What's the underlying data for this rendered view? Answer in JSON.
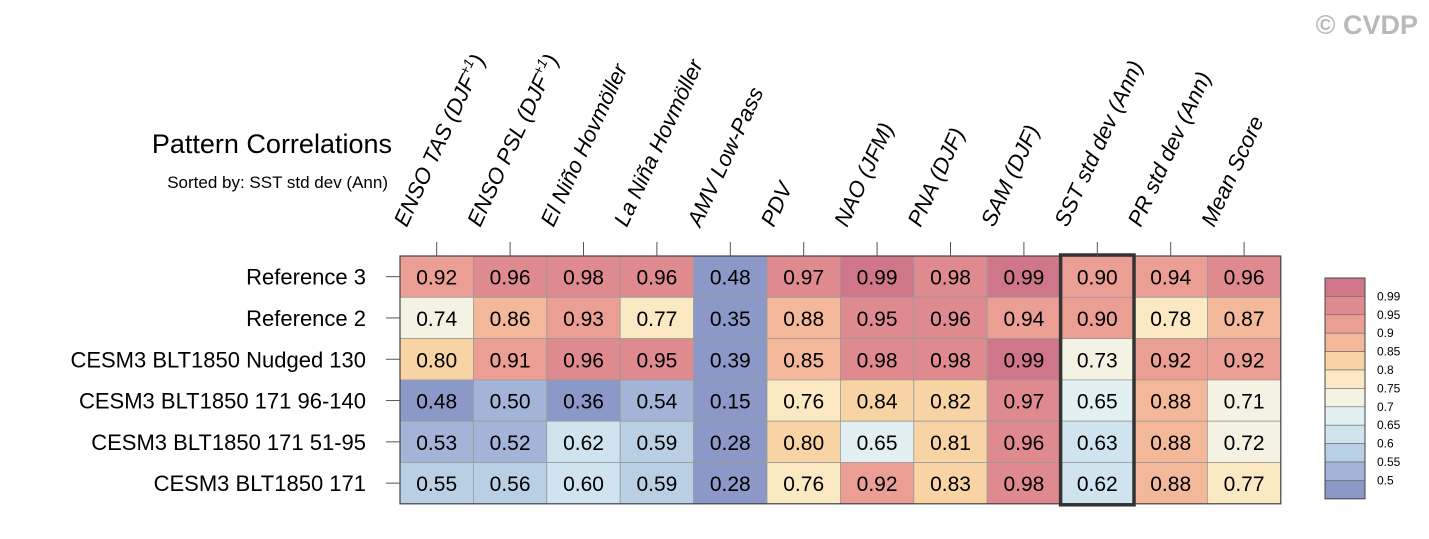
{
  "watermark": "© CVDP",
  "chart_data": {
    "type": "heatmap",
    "title": "Pattern Correlations",
    "subtitle": "Sorted by: SST std dev (Ann)",
    "columns": [
      "ENSO TAS (DJF+1)",
      "ENSO PSL (DJF+1)",
      "El Niño Hovmöller",
      "La Niña Hovmöller",
      "AMV Low-Pass",
      "PDV",
      "NAO (JFM)",
      "PNA (DJF)",
      "SAM (DJF)",
      "SST std dev (Ann)",
      "PR std dev (Ann)",
      "Mean Score"
    ],
    "column_superscripts": [
      "+1",
      "+1",
      "",
      "",
      "",
      "",
      "",
      "",
      "",
      "",
      "",
      ""
    ],
    "rows": [
      "Reference 3",
      "Reference 2",
      "CESM3 BLT1850 Nudged 130",
      "CESM3 BLT1850 171 96-140",
      "CESM3 BLT1850 171 51-95",
      "CESM3 BLT1850 171"
    ],
    "values": [
      [
        "0.92",
        "0.96",
        "0.98",
        "0.96",
        "0.48",
        "0.97",
        "0.99",
        "0.98",
        "0.99",
        "0.90",
        "0.94",
        "0.96"
      ],
      [
        "0.74",
        "0.86",
        "0.93",
        "0.77",
        "0.35",
        "0.88",
        "0.95",
        "0.96",
        "0.94",
        "0.90",
        "0.78",
        "0.87"
      ],
      [
        "0.80",
        "0.91",
        "0.96",
        "0.95",
        "0.39",
        "0.85",
        "0.98",
        "0.98",
        "0.99",
        "0.73",
        "0.92",
        "0.92"
      ],
      [
        "0.48",
        "0.50",
        "0.36",
        "0.54",
        "0.15",
        "0.76",
        "0.84",
        "0.82",
        "0.97",
        "0.65",
        "0.88",
        "0.71"
      ],
      [
        "0.53",
        "0.52",
        "0.62",
        "0.59",
        "0.28",
        "0.80",
        "0.65",
        "0.81",
        "0.96",
        "0.63",
        "0.88",
        "0.72"
      ],
      [
        "0.55",
        "0.56",
        "0.60",
        "0.59",
        "0.28",
        "0.76",
        "0.92",
        "0.83",
        "0.98",
        "0.62",
        "0.88",
        "0.77"
      ]
    ],
    "highlighted_column": "SST std dev (Ann)",
    "colorbar": {
      "levels": [
        0.5,
        0.55,
        0.6,
        0.65,
        0.7,
        0.75,
        0.8,
        0.85,
        0.9,
        0.95,
        0.99
      ],
      "tick_labels": [
        "0.5",
        "0.55",
        "0.6",
        "0.65",
        "0.7",
        "0.75",
        "0.8",
        "0.85",
        "0.9",
        "0.95",
        "0.99"
      ],
      "colors": [
        "#8c98c8",
        "#a3b4d8",
        "#b9cfe4",
        "#cfe4ee",
        "#e2f0f2",
        "#f4f3e3",
        "#fbe9c4",
        "#f8d3a4",
        "#f3b89a",
        "#ea9e94",
        "#df8a8e",
        "#cf7688"
      ]
    }
  }
}
